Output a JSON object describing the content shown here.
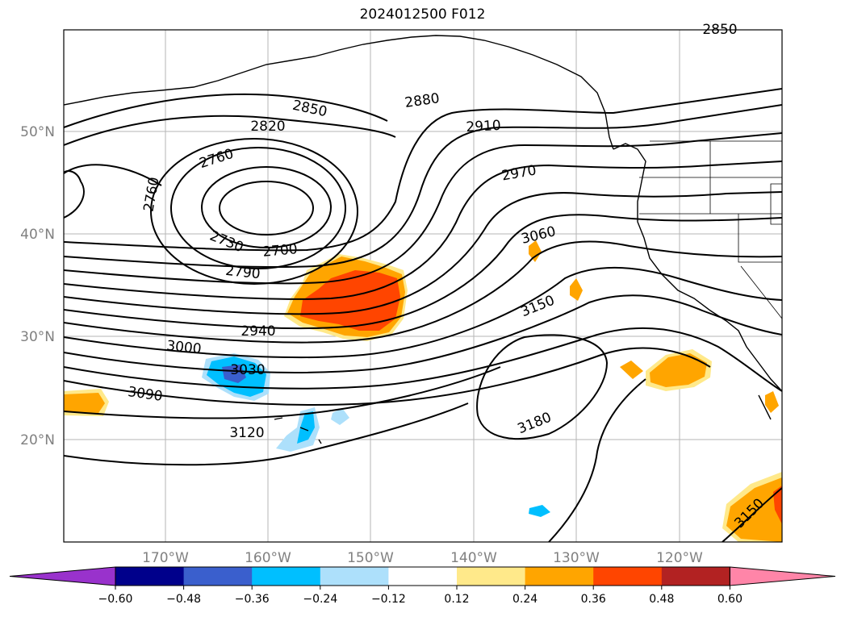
{
  "title": "2024012500 F012",
  "lat_labels": [
    "50°N",
    "40°N",
    "30°N",
    "20°N"
  ],
  "lon_labels": [
    "170°W",
    "160°W",
    "150°W",
    "140°W",
    "130°W",
    "120°W"
  ],
  "contour_labels": [
    {
      "text": "2850"
    },
    {
      "text": "2880"
    },
    {
      "text": "2820"
    },
    {
      "text": "2910"
    },
    {
      "text": "2760"
    },
    {
      "text": "2970"
    },
    {
      "text": "2760"
    },
    {
      "text": "3060"
    },
    {
      "text": "2730"
    },
    {
      "text": "2700"
    },
    {
      "text": "2790"
    },
    {
      "text": "3150"
    },
    {
      "text": "2940"
    },
    {
      "text": "3000"
    },
    {
      "text": "3030"
    },
    {
      "text": "3090"
    },
    {
      "text": "3180"
    },
    {
      "text": "3120"
    },
    {
      "text": "3150"
    },
    {
      "text": "2850"
    }
  ],
  "colorbar": {
    "ticks": [
      "−0.60",
      "−0.48",
      "−0.36",
      "−0.24",
      "−0.12",
      "0.12",
      "0.24",
      "0.36",
      "0.48",
      "0.60"
    ],
    "colors": [
      "#9932cc",
      "#00008b",
      "#3a5fcd",
      "#00bfff",
      "#ade0fb",
      "#ffffff",
      "#ffe98a",
      "#ffa500",
      "#ff4500",
      "#b22222",
      "#ff85a8"
    ]
  }
}
